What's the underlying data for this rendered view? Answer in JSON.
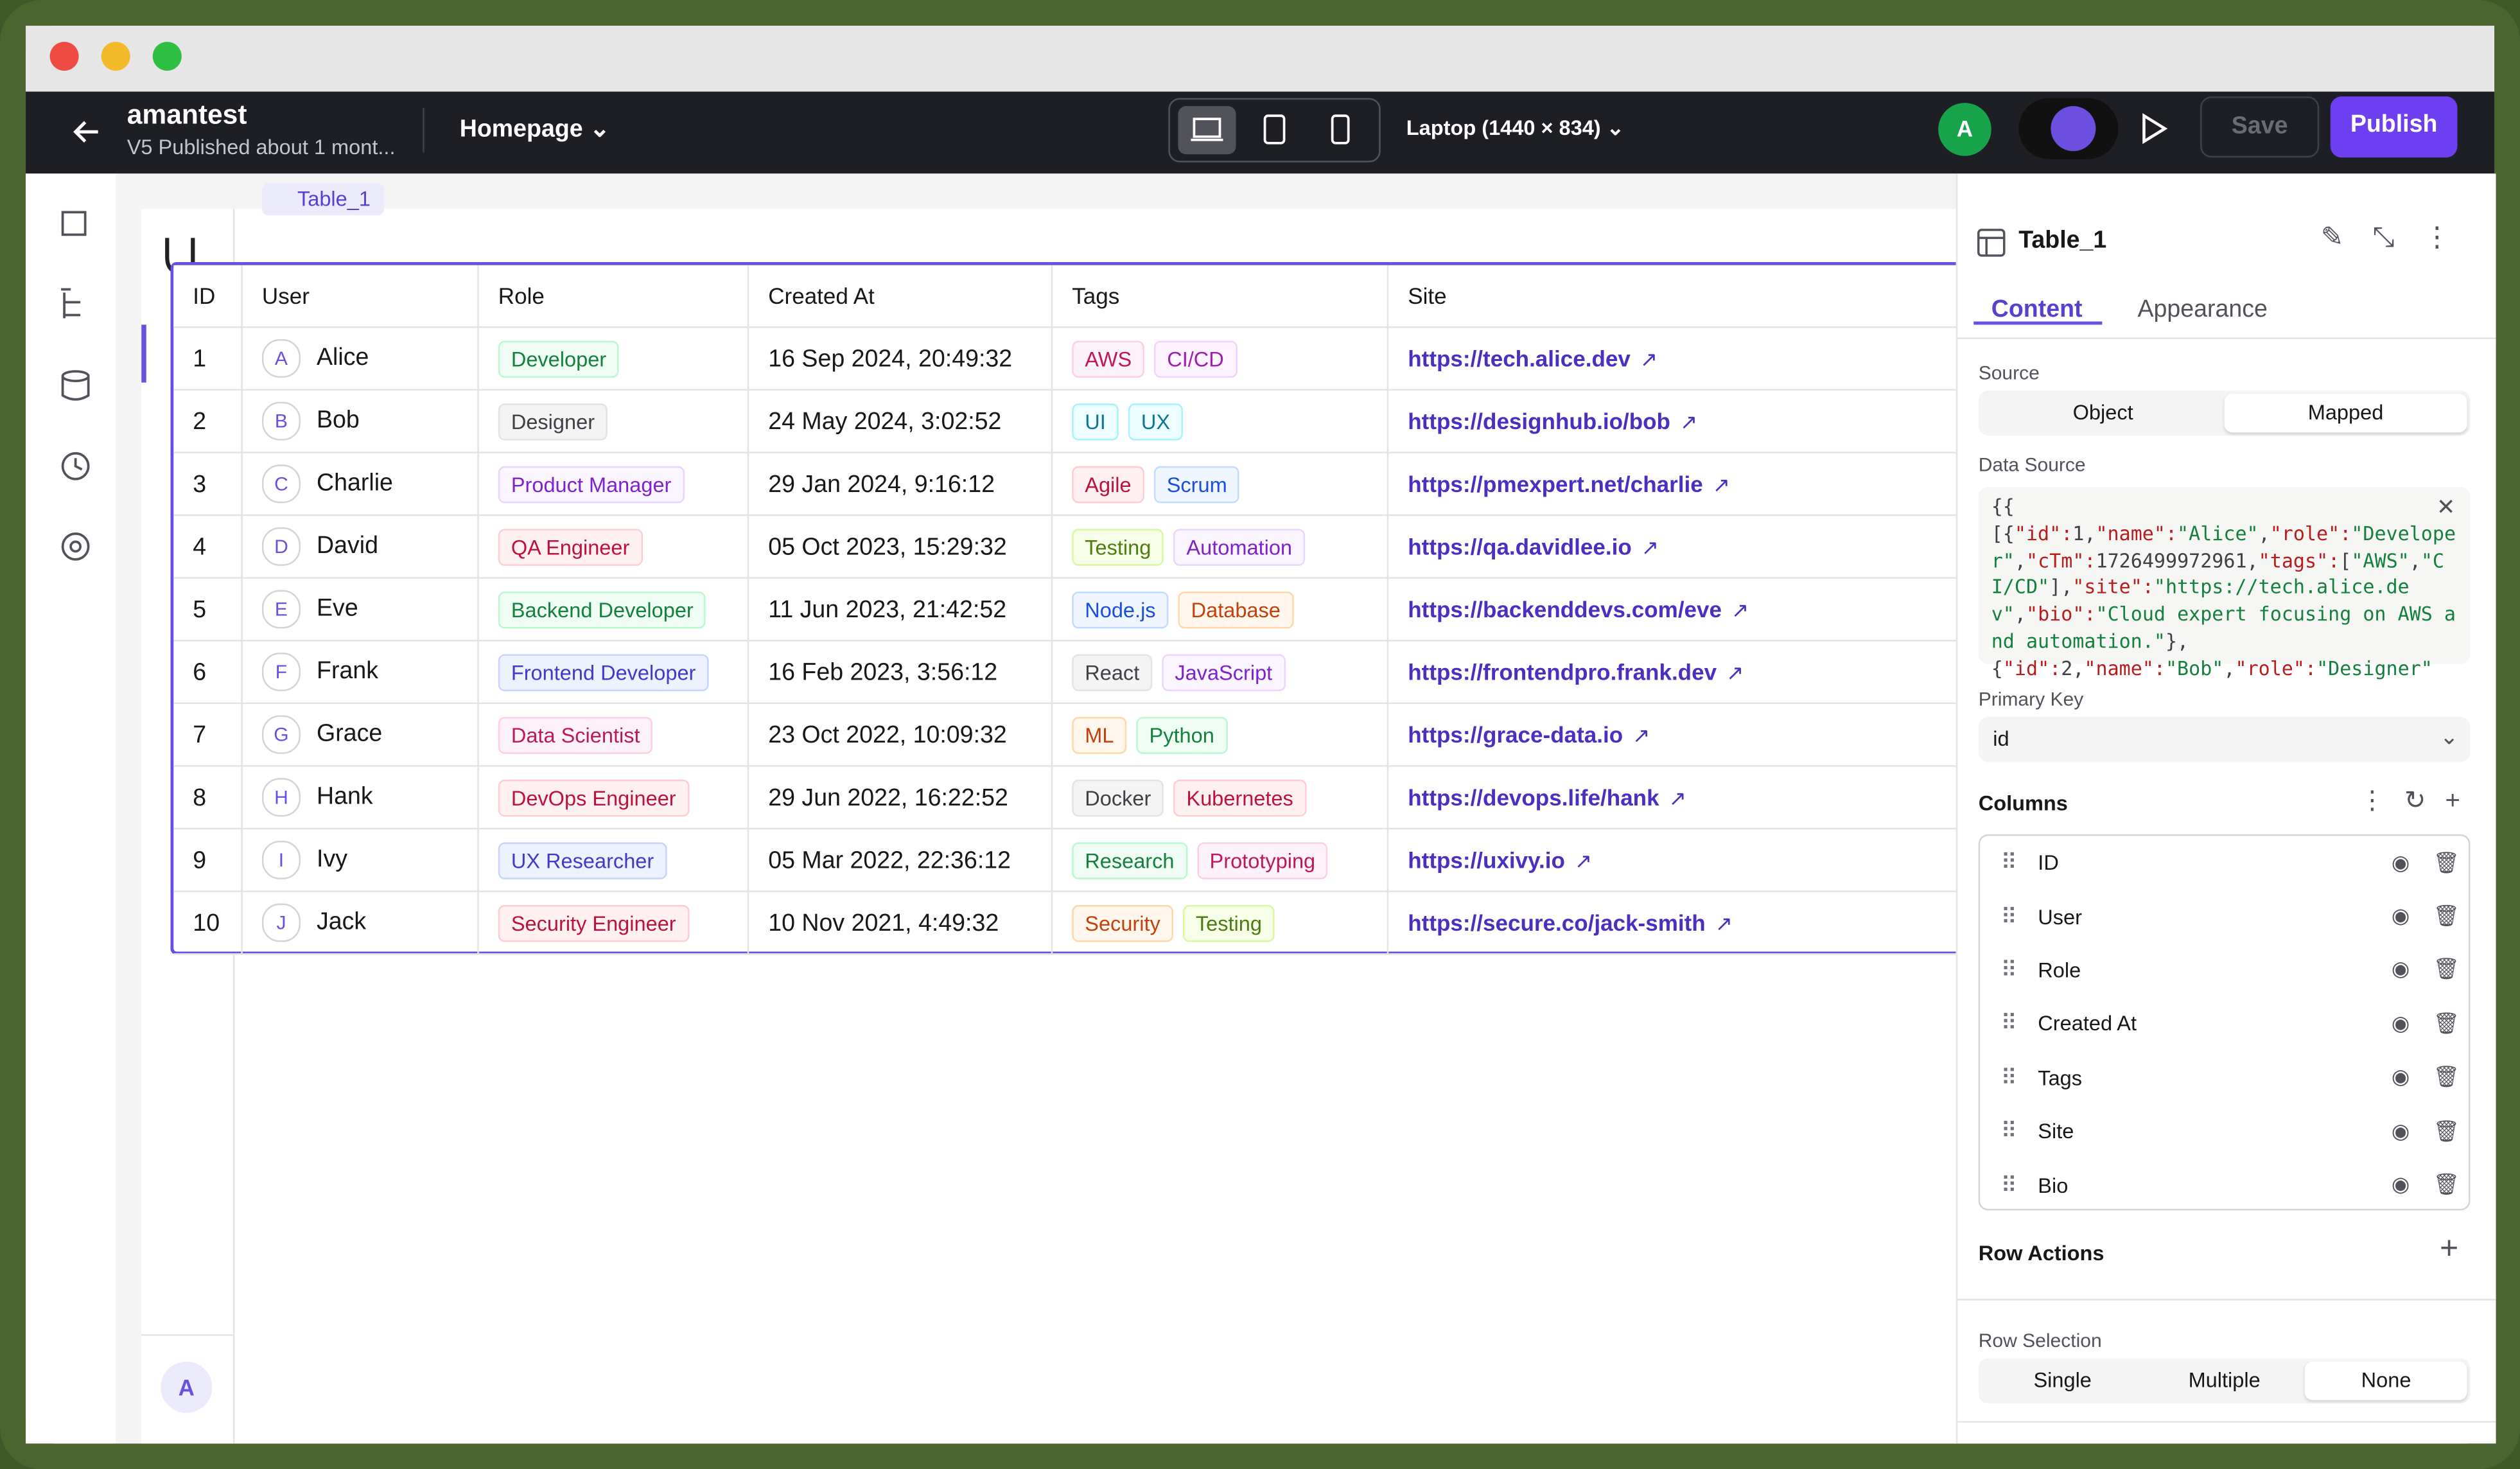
{
  "topbar": {
    "project": "amantest",
    "status": "V5 Published about 1 mont...",
    "page": "Homepage",
    "viewport": "Laptop (1440 × 834)",
    "avatar": "A",
    "save": "Save",
    "publish": "Publish"
  },
  "canvas": {
    "component_label": "Table_1",
    "sidebar_avatar": "A",
    "table": {
      "headers": [
        "ID",
        "User",
        "Role",
        "Created At",
        "Tags",
        "Site"
      ],
      "rows": [
        {
          "id": 1,
          "avatar": "A",
          "user": "Alice",
          "role": "Developer",
          "created": "16 Sep 2024, 20:49:32",
          "tags": [
            "AWS",
            "CI/CD"
          ],
          "site": "https://tech.alice.dev"
        },
        {
          "id": 2,
          "avatar": "B",
          "user": "Bob",
          "role": "Designer",
          "created": "24 May 2024, 3:02:52",
          "tags": [
            "UI",
            "UX"
          ],
          "site": "https://designhub.io/bob"
        },
        {
          "id": 3,
          "avatar": "C",
          "user": "Charlie",
          "role": "Product Manager",
          "created": "29 Jan 2024, 9:16:12",
          "tags": [
            "Agile",
            "Scrum"
          ],
          "site": "https://pmexpert.net/charlie"
        },
        {
          "id": 4,
          "avatar": "D",
          "user": "David",
          "role": "QA Engineer",
          "created": "05 Oct 2023, 15:29:32",
          "tags": [
            "Testing",
            "Automation"
          ],
          "site": "https://qa.davidlee.io"
        },
        {
          "id": 5,
          "avatar": "E",
          "user": "Eve",
          "role": "Backend Developer",
          "created": "11 Jun 2023, 21:42:52",
          "tags": [
            "Node.js",
            "Database"
          ],
          "site": "https://backenddevs.com/eve"
        },
        {
          "id": 6,
          "avatar": "F",
          "user": "Frank",
          "role": "Frontend Developer",
          "created": "16 Feb 2023, 3:56:12",
          "tags": [
            "React",
            "JavaScript"
          ],
          "site": "https://frontendpro.frank.dev"
        },
        {
          "id": 7,
          "avatar": "G",
          "user": "Grace",
          "role": "Data Scientist",
          "created": "23 Oct 2022, 10:09:32",
          "tags": [
            "ML",
            "Python"
          ],
          "site": "https://grace-data.io"
        },
        {
          "id": 8,
          "avatar": "H",
          "user": "Hank",
          "role": "DevOps Engineer",
          "created": "29 Jun 2022, 16:22:52",
          "tags": [
            "Docker",
            "Kubernetes"
          ],
          "site": "https://devops.life/hank"
        },
        {
          "id": 9,
          "avatar": "I",
          "user": "Ivy",
          "role": "UX Researcher",
          "created": "05 Mar 2022, 22:36:12",
          "tags": [
            "Research",
            "Prototyping"
          ],
          "site": "https://uxivy.io"
        },
        {
          "id": 10,
          "avatar": "J",
          "user": "Jack",
          "role": "Security Engineer",
          "created": "10 Nov 2021, 4:49:32",
          "tags": [
            "Security",
            "Testing"
          ],
          "site": "https://secure.co/jack-smith"
        }
      ]
    }
  },
  "panel": {
    "title": "Table_1",
    "tabs": [
      "Content",
      "Appearance"
    ],
    "source_label": "Source",
    "source_options": [
      "Object",
      "Mapped"
    ],
    "data_source_label": "Data Source",
    "data_source_code": "{{\n[{\"id\":1,\"name\":\"Alice\",\"role\":\"Developer\",\"cTm\":1726499972961,\"tags\":[\"AWS\",\"CI/CD\"],\"site\":\"https://tech.alice.dev\",\"bio\":\"Cloud expert focusing on AWS and automation.\"},\n{\"id\":2,\"name\":\"Bob\",\"role\":\"Designer\"",
    "primary_key_label": "Primary Key",
    "primary_key": "id",
    "columns_label": "Columns",
    "columns": [
      "ID",
      "User",
      "Role",
      "Created At",
      "Tags",
      "Site",
      "Bio"
    ],
    "row_actions_label": "Row Actions",
    "row_selection_label": "Row Selection",
    "row_selection_options": [
      "Single",
      "Multiple",
      "None"
    ]
  }
}
